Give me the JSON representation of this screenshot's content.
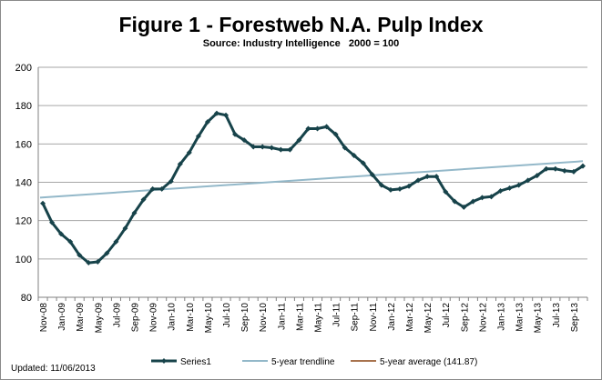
{
  "chart_data": {
    "type": "line",
    "title": "Figure 1 - Forestweb N.A. Pulp Index",
    "subtitle": "Source: Industry Intelligence   2000 = 100",
    "xlabel": "",
    "ylabel": "",
    "ylim": [
      80,
      200
    ],
    "yticks": [
      80,
      100,
      120,
      140,
      160,
      180,
      200
    ],
    "grid": "horizontal",
    "legend": "bottom",
    "x": [
      "Nov-08",
      "Dec-08",
      "Jan-09",
      "Feb-09",
      "Mar-09",
      "Apr-09",
      "May-09",
      "Jun-09",
      "Jul-09",
      "Aug-09",
      "Sep-09",
      "Oct-09",
      "Nov-09",
      "Dec-09",
      "Jan-10",
      "Feb-10",
      "Mar-10",
      "Apr-10",
      "May-10",
      "Jun-10",
      "Jul-10",
      "Aug-10",
      "Sep-10",
      "Oct-10",
      "Nov-10",
      "Dec-10",
      "Jan-11",
      "Feb-11",
      "Mar-11",
      "Apr-11",
      "May-11",
      "Jun-11",
      "Jul-11",
      "Aug-11",
      "Sep-11",
      "Oct-11",
      "Nov-11",
      "Dec-11",
      "Jan-12",
      "Feb-12",
      "Mar-12",
      "Apr-12",
      "May-12",
      "Jun-12",
      "Jul-12",
      "Aug-12",
      "Sep-12",
      "Oct-12",
      "Nov-12",
      "Dec-12",
      "Jan-13",
      "Feb-13",
      "Mar-13",
      "Apr-13",
      "May-13",
      "Jun-13",
      "Jul-13",
      "Aug-13",
      "Sep-13",
      "Oct-13"
    ],
    "xtick_labels": [
      "Nov-08",
      "Jan-09",
      "Mar-09",
      "May-09",
      "Jul-09",
      "Sep-09",
      "Nov-09",
      "Jan-10",
      "Mar-10",
      "May-10",
      "Jul-10",
      "Sep-10",
      "Nov-10",
      "Jan-11",
      "Mar-11",
      "May-11",
      "Jul-11",
      "Sep-11",
      "Nov-11",
      "Jan-12",
      "Mar-12",
      "May-12",
      "Jul-12",
      "Sep-12",
      "Nov-12",
      "Jan-13",
      "Mar-13",
      "May-13",
      "Jul-13",
      "Sep-13"
    ],
    "series": [
      {
        "name": "Series1",
        "color": "#17434a",
        "values": [
          129,
          119,
          113,
          109,
          102,
          98,
          98.5,
          103,
          109,
          116,
          124,
          131,
          136.5,
          136.5,
          140.5,
          149.5,
          155.5,
          164,
          171.5,
          176,
          175,
          165,
          162,
          158.5,
          158.5,
          158,
          157,
          157,
          162,
          168,
          168,
          169,
          165,
          158,
          154,
          150,
          144,
          138.5,
          136,
          136.5,
          138,
          141,
          143,
          143,
          135,
          130,
          127,
          130,
          132,
          132.5,
          135.5,
          137,
          138.5,
          141,
          143.5,
          147,
          147,
          146,
          145.5,
          148.5
        ]
      },
      {
        "name": "5-year trendline",
        "color": "#93b8c9",
        "start": 132,
        "end": 151
      },
      {
        "name": "5-year average (141.87)",
        "color": "#8b4513",
        "value": 141.87
      }
    ]
  },
  "footer": {
    "updated": "Updated:  11/06/2013"
  }
}
